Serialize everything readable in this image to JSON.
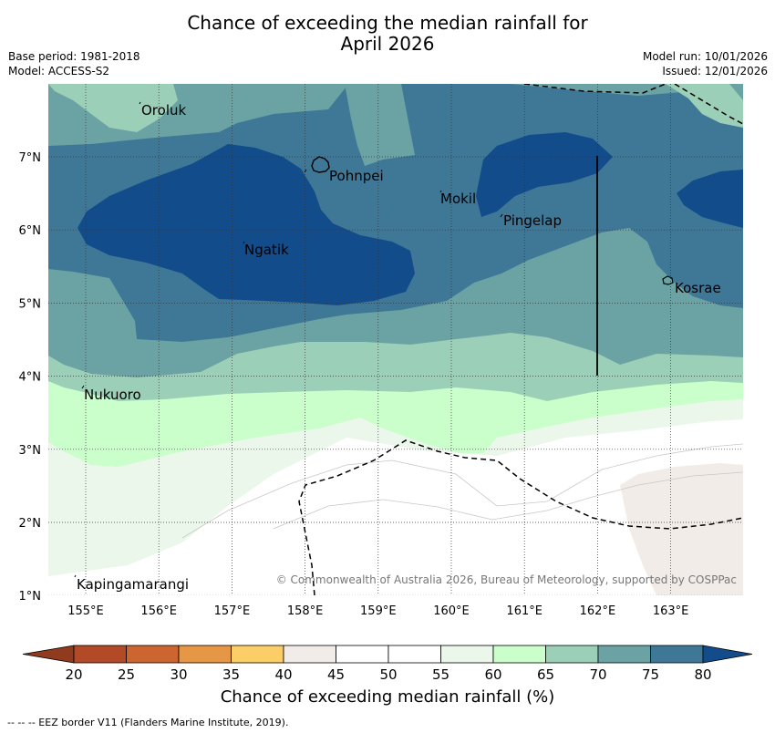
{
  "title_line1": "Chance of exceeding the median rainfall for",
  "title_line2": "April 2026",
  "meta_left": [
    "Base period: 1981-2018",
    "Model: ACCESS-S2"
  ],
  "meta_right": [
    "Model run: 10/01/2026",
    "Issued: 12/01/2026"
  ],
  "lat_ticks": [
    "7°N",
    "6°N",
    "5°N",
    "4°N",
    "3°N",
    "2°N",
    "1°N"
  ],
  "lon_ticks": [
    "155°E",
    "156°E",
    "157°E",
    "158°E",
    "159°E",
    "160°E",
    "161°E",
    "162°E",
    "163°E"
  ],
  "places": [
    {
      "name": "Oroluk"
    },
    {
      "name": "Pohnpei"
    },
    {
      "name": "Mokil"
    },
    {
      "name": "Pingelap"
    },
    {
      "name": "Ngatik"
    },
    {
      "name": "Kosrae"
    },
    {
      "name": "Nukuoro"
    },
    {
      "name": "Kapingamarangi"
    }
  ],
  "copyright": "© Commonwealth of Australia 2026, Bureau of Meteorology, supported by COSPPac",
  "colorbar": {
    "title": "Chance of exceeding median rainfall (%)",
    "ticks": [
      "20",
      "25",
      "30",
      "35",
      "40",
      "45",
      "50",
      "55",
      "60",
      "65",
      "70",
      "75",
      "80"
    ],
    "colors": [
      "#b24a27",
      "#cd6531",
      "#e59746",
      "#fcce67",
      "#f2ece8",
      "#ffffff",
      "#ffffff",
      "#ebf7ea",
      "#cafecb",
      "#9bcfb7",
      "#6ba3a4",
      "#3f7797",
      "#134c8a"
    ],
    "under_color": "#903a1e",
    "over_color": "#134c8a"
  },
  "footnote": "--  --  -- EEZ border V11 (Flanders Marine Institute, 2019)."
}
